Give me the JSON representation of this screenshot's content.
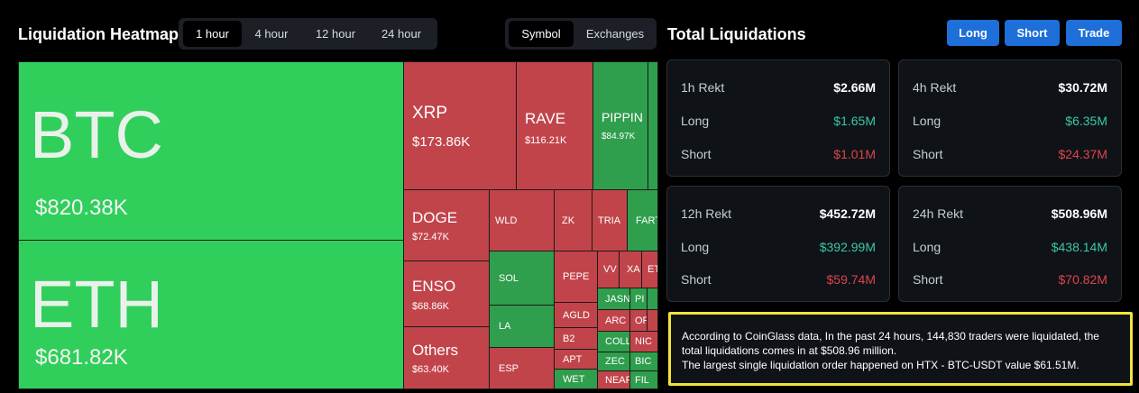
{
  "heatmap": {
    "title": "Liquidation Heatmap",
    "time_tabs": [
      {
        "label": "1 hour",
        "active": true
      },
      {
        "label": "4 hour",
        "active": false
      },
      {
        "label": "12 hour",
        "active": false
      },
      {
        "label": "24 hour",
        "active": false
      }
    ],
    "view_tabs": [
      {
        "label": "Symbol",
        "active": true
      },
      {
        "label": "Exchanges",
        "active": false
      }
    ],
    "tiles": {
      "btc": {
        "symbol": "BTC",
        "value": "$820.38K"
      },
      "eth": {
        "symbol": "ETH",
        "value": "$681.82K"
      },
      "xrp": {
        "symbol": "XRP",
        "value": "$173.86K"
      },
      "rave": {
        "symbol": "RAVE",
        "value": "$116.21K"
      },
      "pippin": {
        "symbol": "PIPPIN",
        "value": "$84.97K"
      },
      "doge": {
        "symbol": "DOGE",
        "value": "$72.47K"
      },
      "enso": {
        "symbol": "ENSO",
        "value": "$68.86K"
      },
      "others": {
        "symbol": "Others",
        "value": "$63.40K"
      },
      "small": [
        "WLD",
        "ZK",
        "TRIA",
        "FART",
        "SOL",
        "PEPE",
        "VV",
        "XA",
        "ET",
        "LA",
        "AGLD",
        "JASN",
        "PI",
        "B2",
        "ARC",
        "OF",
        "ESP",
        "APT",
        "COLL",
        "NIC",
        "ZEC",
        "BIC",
        "WET",
        "NEAR",
        "FIL"
      ]
    }
  },
  "totals": {
    "title": "Total Liquidations",
    "buttons": {
      "long": "Long",
      "short": "Short",
      "trade": "Trade"
    },
    "long_label": "Long",
    "short_label": "Short",
    "cards": [
      {
        "period": "1h Rekt",
        "total": "$2.66M",
        "long": "$1.65M",
        "short": "$1.01M"
      },
      {
        "period": "4h Rekt",
        "total": "$30.72M",
        "long": "$6.35M",
        "short": "$24.37M"
      },
      {
        "period": "12h Rekt",
        "total": "$452.72M",
        "long": "$392.99M",
        "short": "$59.74M"
      },
      {
        "period": "24h Rekt",
        "total": "$508.96M",
        "long": "$438.14M",
        "short": "$70.82M"
      }
    ],
    "note": {
      "line1": "According to CoinGlass data, In the past 24 hours, 144,830 traders were liquidated, the",
      "line2": "total liquidations comes in at $508.96 million.",
      "line3": "The largest single liquidation order happened on HTX - BTC-USDT value $61.51M."
    }
  },
  "colors": {
    "green_bright": "#30cf5b",
    "green_dark": "#2f9e4d",
    "red": "#c2444b",
    "accent_blue": "#1e6fd9",
    "long_text": "#3cc6a5",
    "short_text": "#e0434b",
    "highlight": "#f3e33a"
  }
}
